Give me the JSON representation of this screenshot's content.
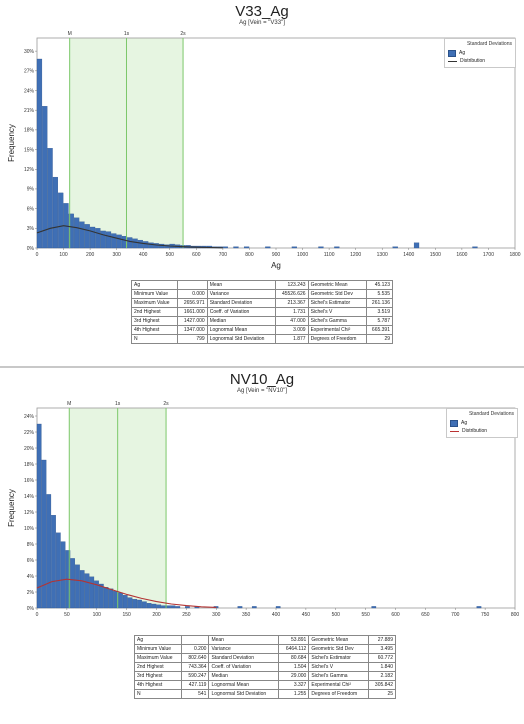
{
  "charts": [
    {
      "title": "V33_Ag",
      "subtitle": "Ag [Vein = \"V33\"]",
      "legend": {
        "title": "Standard Deviations",
        "items": [
          "Ag",
          "Distribution"
        ]
      },
      "stats": [
        [
          "Ag",
          "",
          "Mean",
          "123.243",
          "Geometric Mean",
          "45.123"
        ],
        [
          "Minimum Value",
          "0.000",
          "Variance",
          "45526.626",
          "Geometric Std Dev",
          "5.535"
        ],
        [
          "Maximum Value",
          "2656.971",
          "Standard Deviation",
          "213.367",
          "Sichel's Estimator",
          "261.136"
        ],
        [
          "2nd Highest",
          "1661.000",
          "Coeff. of Variation",
          "1.731",
          "Sichel's V",
          "3.519"
        ],
        [
          "3rd Highest",
          "1427.000",
          "Median",
          "47.000",
          "Sichel's Gamma",
          "5.787"
        ],
        [
          "4th Highest",
          "1347.000",
          "Lognormal Mean",
          "3.009",
          "Experimental Chi²",
          "665.391"
        ],
        [
          "N",
          "799",
          "Lognormal Std Deviation",
          "1.877",
          "Degrees of Freedom",
          "29"
        ]
      ]
    },
    {
      "title": "NV10_Ag",
      "subtitle": "Ag [Vein = \"NV10\"]",
      "legend": {
        "title": "Standard Deviations",
        "items": [
          "Ag",
          "Distribution"
        ]
      },
      "stats": [
        [
          "Ag",
          "",
          "Mean",
          "53.891",
          "Geometric Mean",
          "27.889"
        ],
        [
          "Minimum Value",
          "0.200",
          "Variance",
          "6464.112",
          "Geometric Std Dev",
          "3.495"
        ],
        [
          "Maximum Value",
          "802.640",
          "Standard Deviation",
          "80.684",
          "Sichel's Estimator",
          "60.772"
        ],
        [
          "2nd Highest",
          "743.364",
          "Coeff. of Variation",
          "1.504",
          "Sichel's V",
          "1.840"
        ],
        [
          "3rd Highest",
          "590.247",
          "Median",
          "29.000",
          "Sichel's Gamma",
          "2.182"
        ],
        [
          "4th Highest",
          "427.119",
          "Lognormal Mean",
          "3.327",
          "Experimental Chi²",
          "305.842"
        ],
        [
          "N",
          "541",
          "Lognormal Std Deviation",
          "1.255",
          "Degrees of Freedom",
          "25"
        ]
      ]
    }
  ],
  "chart_data": [
    {
      "type": "bar",
      "title": "V33_Ag",
      "subtitle": "Ag [Vein = \"V33\"]",
      "xlabel": "Ag",
      "ylabel": "Frequency",
      "xlim": [
        0,
        1800
      ],
      "ylim": [
        0,
        32
      ],
      "x_ticks": [
        0,
        100,
        200,
        300,
        400,
        500,
        600,
        700,
        800,
        900,
        1000,
        1100,
        1200,
        1300,
        1400,
        1500,
        1600,
        1700,
        1800
      ],
      "y_ticks": [
        0,
        3,
        6,
        9,
        12,
        15,
        18,
        21,
        24,
        27,
        30
      ],
      "y_tick_labels": [
        "0%",
        "3%",
        "6%",
        "9%",
        "12%",
        "15%",
        "18%",
        "21%",
        "24%",
        "27%",
        "30%"
      ],
      "bin_width": 20,
      "bin_starts": [
        0,
        20,
        40,
        60,
        80,
        100,
        120,
        140,
        160,
        180,
        200,
        220,
        240,
        260,
        280,
        300,
        320,
        340,
        360,
        380,
        400,
        420,
        440,
        460,
        480,
        500,
        520,
        540,
        560,
        580,
        600,
        620,
        640,
        660,
        680,
        700,
        740,
        780,
        860,
        960,
        1060,
        1120,
        1340,
        1420,
        1640
      ],
      "frequencies": [
        28.8,
        21.6,
        15.2,
        10.8,
        8.4,
        6.8,
        5.2,
        4.6,
        4.0,
        3.6,
        3.2,
        3.0,
        2.6,
        2.5,
        2.2,
        2.0,
        1.8,
        1.6,
        1.4,
        1.2,
        1.0,
        0.8,
        0.7,
        0.6,
        0.5,
        0.6,
        0.5,
        0.4,
        0.4,
        0.3,
        0.3,
        0.3,
        0.3,
        0.2,
        0.2,
        0.2,
        0.2,
        0.2,
        0.2,
        0.2,
        0.2,
        0.2,
        0.2,
        0.8,
        0.2
      ],
      "distribution_curve": {
        "x": [
          0,
          50,
          100,
          150,
          200,
          250,
          300,
          350,
          400,
          450,
          500,
          550,
          600,
          650,
          700
        ],
        "y": [
          2.3,
          3.0,
          3.4,
          3.1,
          2.6,
          2.0,
          1.5,
          1.0,
          0.7,
          0.45,
          0.3,
          0.2,
          0.12,
          0.07,
          0.03
        ]
      },
      "std_dev_lines": [
        {
          "label": "M",
          "x": 123
        },
        {
          "label": "1s",
          "x": 337
        },
        {
          "label": "2s",
          "x": 550
        }
      ],
      "series": [
        {
          "name": "Ag"
        },
        {
          "name": "Distribution"
        }
      ],
      "legend_position": "top-right",
      "grid": false
    },
    {
      "type": "bar",
      "title": "NV10_Ag",
      "subtitle": "Ag [Vein = \"NV10\"]",
      "xlabel": "",
      "ylabel": "Frequency",
      "xlim": [
        0,
        800
      ],
      "ylim": [
        0,
        25
      ],
      "x_ticks": [
        0,
        50,
        100,
        150,
        200,
        250,
        300,
        350,
        400,
        450,
        500,
        550,
        600,
        650,
        700,
        750,
        800
      ],
      "y_ticks": [
        0,
        2,
        4,
        6,
        8,
        10,
        12,
        14,
        16,
        18,
        20,
        22,
        24
      ],
      "y_tick_labels": [
        "0%",
        "2%",
        "4%",
        "6%",
        "8%",
        "10%",
        "12%",
        "14%",
        "16%",
        "18%",
        "20%",
        "22%",
        "24%"
      ],
      "bin_width": 8,
      "bin_starts": [
        0,
        8,
        16,
        24,
        32,
        40,
        48,
        56,
        64,
        72,
        80,
        88,
        96,
        104,
        112,
        120,
        128,
        136,
        144,
        152,
        160,
        168,
        176,
        184,
        192,
        200,
        208,
        216,
        224,
        232,
        248,
        264,
        296,
        336,
        360,
        400,
        560,
        736
      ],
      "frequencies": [
        23.0,
        18.5,
        14.2,
        11.6,
        9.4,
        8.3,
        7.2,
        6.2,
        5.4,
        4.7,
        4.3,
        3.9,
        3.4,
        3.0,
        2.6,
        2.4,
        2.1,
        1.9,
        1.6,
        1.3,
        1.1,
        1.0,
        0.8,
        0.6,
        0.5,
        0.4,
        0.3,
        0.3,
        0.3,
        0.2,
        0.2,
        0.2,
        0.2,
        0.2,
        0.2,
        0.2,
        0.2,
        0.2
      ],
      "distribution_curve": {
        "x": [
          0,
          25,
          50,
          75,
          100,
          125,
          150,
          175,
          200,
          225,
          250,
          275,
          300
        ],
        "y": [
          2.5,
          3.3,
          3.6,
          3.4,
          2.9,
          2.3,
          1.7,
          1.2,
          0.8,
          0.5,
          0.3,
          0.15,
          0.07
        ]
      },
      "std_dev_lines": [
        {
          "label": "M",
          "x": 54
        },
        {
          "label": "1s",
          "x": 135
        },
        {
          "label": "2s",
          "x": 216
        }
      ],
      "series": [
        {
          "name": "Ag"
        },
        {
          "name": "Distribution"
        }
      ],
      "legend_position": "top-right",
      "grid": false
    }
  ],
  "colors": {
    "bar": "#3f6fb5",
    "bar_edge": "#2b528a",
    "band": "#e6f5e1",
    "sd_line": "#7cc86a",
    "curve": "#333333",
    "curve_red": "#b33333"
  }
}
